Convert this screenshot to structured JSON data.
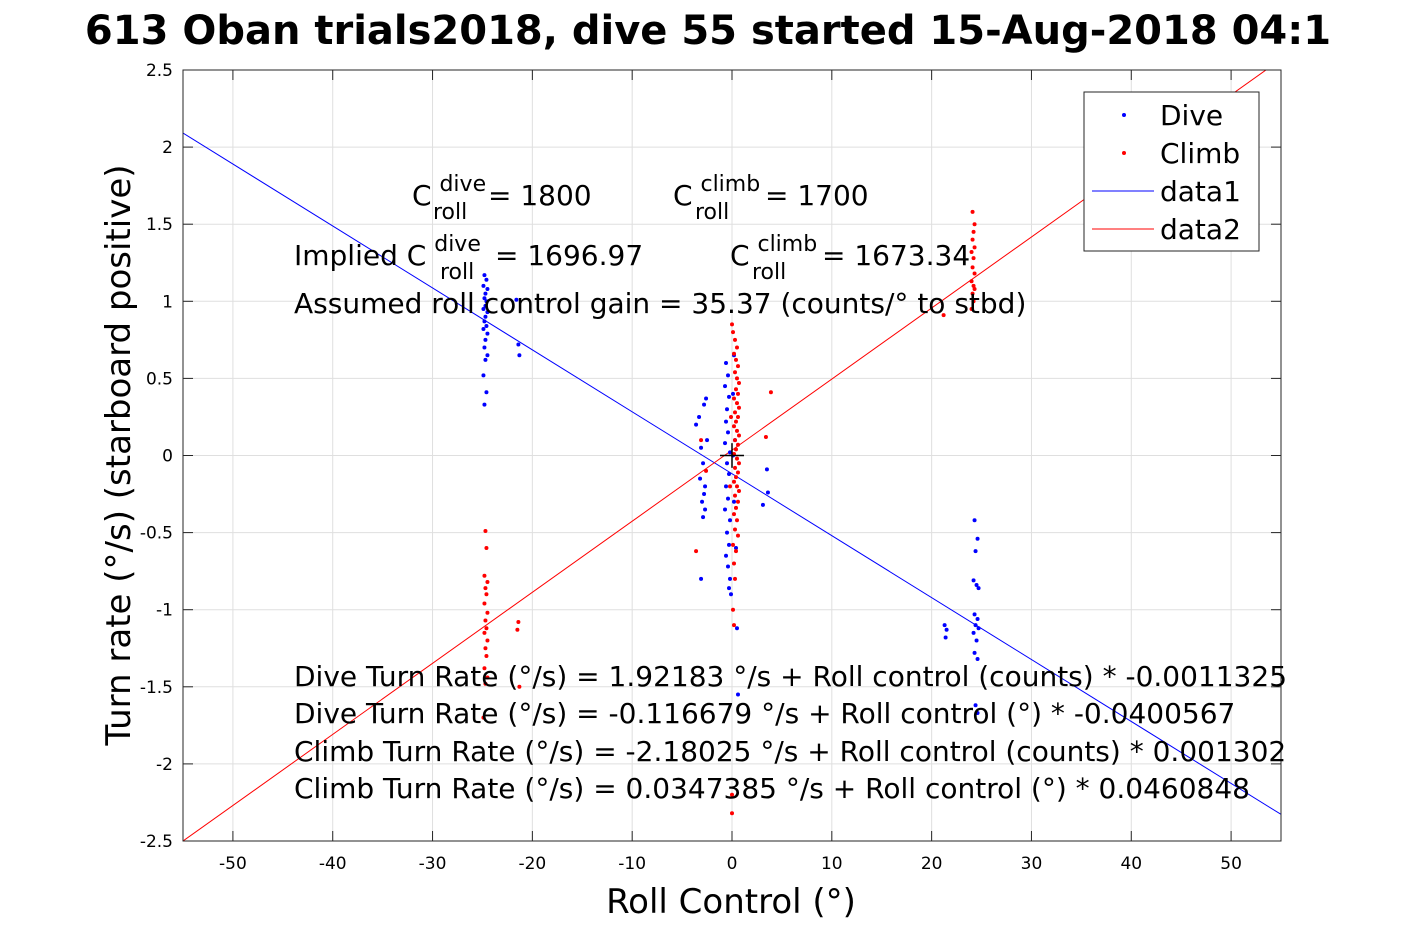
{
  "chart_data": {
    "type": "scatter",
    "title": "613 Oban trials2018, dive 55 started 15-Aug-2018 04:1",
    "xlabel": "Roll Control (°)",
    "ylabel": "Turn rate (°/s) (starboard positive)",
    "xlim": [
      -55,
      55
    ],
    "ylim": [
      -2.5,
      2.5
    ],
    "xticks": [
      -50,
      -40,
      -30,
      -20,
      -10,
      0,
      10,
      20,
      30,
      40,
      50
    ],
    "yticks": [
      -2.5,
      -2,
      -1.5,
      -1,
      -0.5,
      0,
      0.5,
      1,
      1.5,
      2,
      2.5
    ],
    "xtick_labels": [
      "-50",
      "-40",
      "-30",
      "-20",
      "-10",
      "0",
      "10",
      "20",
      "30",
      "40",
      "50"
    ],
    "ytick_labels": [
      "-2.5",
      "-2",
      "-1.5",
      "-1",
      "-0.5",
      "0",
      "0.5",
      "1",
      "1.5",
      "2",
      "2.5"
    ],
    "grid": true,
    "legend_position": "top-right",
    "series": [
      {
        "name": "Dive",
        "kind": "points",
        "color": "#0000ff",
        "points": [
          [
            -24.8,
            1.17
          ],
          [
            -24.6,
            1.14
          ],
          [
            -24.9,
            1.1
          ],
          [
            -24.5,
            1.08
          ],
          [
            -24.7,
            1.05
          ],
          [
            -24.8,
            1.02
          ],
          [
            -24.6,
            1.0
          ],
          [
            -24.7,
            0.97
          ],
          [
            -24.9,
            0.95
          ],
          [
            -24.5,
            0.93
          ],
          [
            -24.7,
            0.9
          ],
          [
            -24.8,
            0.87
          ],
          [
            -24.6,
            0.84
          ],
          [
            -24.9,
            0.82
          ],
          [
            -24.5,
            0.79
          ],
          [
            -24.7,
            0.75
          ],
          [
            -24.8,
            0.7
          ],
          [
            -24.5,
            0.65
          ],
          [
            -24.7,
            0.62
          ],
          [
            -24.9,
            0.52
          ],
          [
            -24.6,
            0.41
          ],
          [
            -24.8,
            0.33
          ],
          [
            -21.6,
            1.01
          ],
          [
            -21.4,
            0.72
          ],
          [
            -21.3,
            0.65
          ],
          [
            -3.6,
            0.2
          ],
          [
            -3.3,
            0.25
          ],
          [
            -3.1,
            0.05
          ],
          [
            -2.9,
            -0.05
          ],
          [
            -3.2,
            -0.15
          ],
          [
            -2.8,
            -0.25
          ],
          [
            -3.0,
            -0.3
          ],
          [
            -2.7,
            -0.35
          ],
          [
            -2.9,
            -0.4
          ],
          [
            -3.1,
            -0.8
          ],
          [
            -2.6,
            0.37
          ],
          [
            -2.8,
            0.33
          ],
          [
            -2.5,
            0.1
          ],
          [
            -2.7,
            -0.2
          ],
          [
            -0.6,
            0.6
          ],
          [
            -0.4,
            0.52
          ],
          [
            -0.7,
            0.45
          ],
          [
            -0.3,
            0.38
          ],
          [
            -0.5,
            0.3
          ],
          [
            -0.6,
            0.22
          ],
          [
            -0.4,
            0.15
          ],
          [
            -0.7,
            0.08
          ],
          [
            -0.2,
            0.02
          ],
          [
            -0.5,
            -0.05
          ],
          [
            -0.3,
            -0.12
          ],
          [
            -0.6,
            -0.2
          ],
          [
            -0.4,
            -0.28
          ],
          [
            -0.7,
            -0.35
          ],
          [
            -0.2,
            -0.42
          ],
          [
            -0.5,
            -0.5
          ],
          [
            -0.3,
            -0.58
          ],
          [
            -0.6,
            -0.65
          ],
          [
            -0.4,
            -0.72
          ],
          [
            -0.2,
            -0.8
          ],
          [
            -0.3,
            -0.86
          ],
          [
            -0.1,
            -0.9
          ],
          [
            0.2,
            0.65
          ],
          [
            0.1,
            0.4
          ],
          [
            0.3,
            0.1
          ],
          [
            0.2,
            -0.3
          ],
          [
            0.4,
            -0.6
          ],
          [
            0.5,
            -1.12
          ],
          [
            0.6,
            -1.55
          ],
          [
            0.1,
            0.0
          ],
          [
            3.5,
            -0.09
          ],
          [
            3.6,
            -0.24
          ],
          [
            3.1,
            -0.32
          ],
          [
            21.3,
            -1.1
          ],
          [
            21.5,
            -1.13
          ],
          [
            21.4,
            -1.18
          ],
          [
            24.3,
            -0.42
          ],
          [
            24.6,
            -0.54
          ],
          [
            24.4,
            -0.62
          ],
          [
            24.2,
            -0.81
          ],
          [
            24.5,
            -0.84
          ],
          [
            24.7,
            -0.86
          ],
          [
            24.3,
            -1.03
          ],
          [
            24.6,
            -1.06
          ],
          [
            24.4,
            -1.1
          ],
          [
            24.7,
            -1.12
          ],
          [
            24.2,
            -1.15
          ],
          [
            24.5,
            -1.2
          ],
          [
            24.3,
            -1.28
          ],
          [
            24.6,
            -1.32
          ],
          [
            24.4,
            -1.62
          ],
          [
            24.6,
            -1.67
          ]
        ]
      },
      {
        "name": "Climb",
        "kind": "points",
        "color": "#ff0000",
        "points": [
          [
            -24.7,
            -0.49
          ],
          [
            -24.6,
            -0.6
          ],
          [
            -24.8,
            -0.78
          ],
          [
            -24.5,
            -0.82
          ],
          [
            -24.7,
            -0.86
          ],
          [
            -24.6,
            -0.9
          ],
          [
            -24.8,
            -0.96
          ],
          [
            -24.5,
            -1.02
          ],
          [
            -24.7,
            -1.07
          ],
          [
            -24.6,
            -1.12
          ],
          [
            -24.8,
            -1.15
          ],
          [
            -24.5,
            -1.2
          ],
          [
            -24.7,
            -1.25
          ],
          [
            -24.6,
            -1.3
          ],
          [
            -24.8,
            -1.38
          ],
          [
            -24.5,
            -1.44
          ],
          [
            -24.7,
            -1.48
          ],
          [
            -24.9,
            -1.7
          ],
          [
            -21.4,
            -1.08
          ],
          [
            -21.5,
            -1.13
          ],
          [
            -21.3,
            -1.5
          ],
          [
            -3.6,
            -0.62
          ],
          [
            -3.1,
            0.1
          ],
          [
            -2.6,
            -0.1
          ],
          [
            0.0,
            0.85
          ],
          [
            0.1,
            0.8
          ],
          [
            0.3,
            0.75
          ],
          [
            0.5,
            0.7
          ],
          [
            0.2,
            0.66
          ],
          [
            0.4,
            0.62
          ],
          [
            0.6,
            0.58
          ],
          [
            0.3,
            0.54
          ],
          [
            0.5,
            0.5
          ],
          [
            0.7,
            0.47
          ],
          [
            0.4,
            0.43
          ],
          [
            0.6,
            0.4
          ],
          [
            0.2,
            0.37
          ],
          [
            0.5,
            0.34
          ],
          [
            0.7,
            0.31
          ],
          [
            0.3,
            0.28
          ],
          [
            0.6,
            0.25
          ],
          [
            0.4,
            0.22
          ],
          [
            0.2,
            0.19
          ],
          [
            0.5,
            0.16
          ],
          [
            0.7,
            0.13
          ],
          [
            0.3,
            0.1
          ],
          [
            0.6,
            0.07
          ],
          [
            0.4,
            0.04
          ],
          [
            0.2,
            0.01
          ],
          [
            0.5,
            -0.02
          ],
          [
            0.7,
            -0.05
          ],
          [
            0.3,
            -0.08
          ],
          [
            0.6,
            -0.11
          ],
          [
            0.4,
            -0.14
          ],
          [
            0.2,
            -0.17
          ],
          [
            0.5,
            -0.2
          ],
          [
            0.7,
            -0.23
          ],
          [
            0.3,
            -0.26
          ],
          [
            0.6,
            -0.3
          ],
          [
            0.4,
            -0.34
          ],
          [
            0.2,
            -0.38
          ],
          [
            0.5,
            -0.42
          ],
          [
            0.3,
            -0.48
          ],
          [
            0.6,
            -0.52
          ],
          [
            0.1,
            -0.58
          ],
          [
            0.4,
            -0.62
          ],
          [
            0.2,
            -0.7
          ],
          [
            0.3,
            -0.8
          ],
          [
            0.1,
            -1.0
          ],
          [
            0.2,
            -1.1
          ],
          [
            0.0,
            -2.2
          ],
          [
            0.0,
            -2.32
          ],
          [
            -0.1,
            0.25
          ],
          [
            -0.2,
            -0.2
          ],
          [
            3.4,
            0.12
          ],
          [
            3.9,
            0.41
          ],
          [
            21.2,
            0.91
          ],
          [
            24.0,
            0.95
          ],
          [
            24.2,
            1.0
          ],
          [
            24.1,
            1.05
          ],
          [
            24.3,
            1.08
          ],
          [
            24.2,
            1.1
          ],
          [
            24.0,
            1.13
          ],
          [
            24.3,
            1.18
          ],
          [
            24.1,
            1.22
          ],
          [
            24.2,
            1.28
          ],
          [
            24.0,
            1.32
          ],
          [
            24.3,
            1.35
          ],
          [
            24.1,
            1.4
          ],
          [
            24.2,
            1.45
          ],
          [
            24.3,
            1.5
          ],
          [
            24.1,
            1.58
          ]
        ]
      },
      {
        "name": "data1",
        "kind": "line",
        "color": "#0000ff",
        "points": [
          [
            -55,
            2.0909
          ],
          [
            55,
            -2.3274
          ]
        ]
      },
      {
        "name": "data2",
        "kind": "line",
        "color": "#ff0000",
        "points": [
          [
            -55,
            -2.5
          ],
          [
            55,
            2.5695
          ]
        ]
      }
    ],
    "annotations": {
      "c_dive_pre": "C",
      "c_dive_sup": "dive",
      "c_dive_sub": "roll",
      "c_dive_val": " = 1800",
      "c_climb_pre": "C",
      "c_climb_sup": "climb",
      "c_climb_sub": "roll",
      "c_climb_val": " = 1700",
      "implied_pre": "Implied C",
      "implied_dive_sup": "dive",
      "implied_dive_sub": "roll",
      "implied_dive_val": " = 1696.97",
      "implied_climb_pre": "C",
      "implied_climb_sup": "climb",
      "implied_climb_sub": "roll",
      "implied_climb_val": " = 1673.34",
      "gain": "Assumed roll control gain = 35.37 (counts/° to stbd)",
      "fit1": "Dive Turn Rate (°/s) = 1.92183 °/s + Roll control (counts) * -0.0011325",
      "fit2": "Dive Turn Rate (°/s) = -0.116679 °/s + Roll control (°) * -0.0400567",
      "fit3": "Climb Turn Rate (°/s) = -2.18025 °/s + Roll control (counts) * 0.001302",
      "fit4": "Climb Turn Rate (°/s) = 0.0347385 °/s + Roll control (°) * 0.0460848"
    }
  }
}
